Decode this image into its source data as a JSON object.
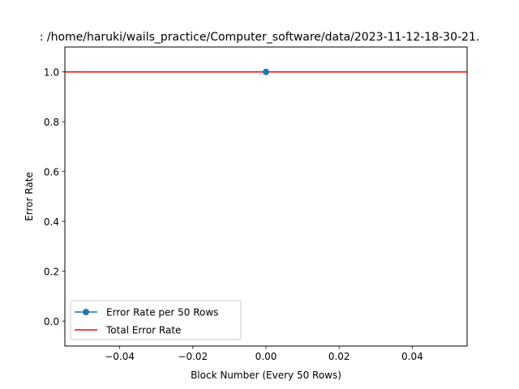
{
  "chart_data": {
    "type": "line",
    "title": ": /home/haruki/wails_practice/Computer_software/data/2023-11-12-18-30-21.",
    "xlabel": "Block Number (Every 50 Rows)",
    "ylabel": "Error Rate",
    "xlim": [
      -0.055,
      0.055
    ],
    "ylim": [
      -0.1,
      1.1
    ],
    "x_ticks": [
      -0.04,
      -0.02,
      0.0,
      0.02,
      0.04
    ],
    "x_tick_labels": [
      "−0.04",
      "−0.02",
      "0.00",
      "0.02",
      "0.04"
    ],
    "y_ticks": [
      0.0,
      0.2,
      0.4,
      0.6,
      0.8,
      1.0
    ],
    "y_tick_labels": [
      "0.0",
      "0.2",
      "0.4",
      "0.6",
      "0.8",
      "1.0"
    ],
    "grid": false,
    "legend_position": "lower-left",
    "series": [
      {
        "name": "Error Rate per 50 Rows",
        "kind": "line-with-markers",
        "color": "#1f77b4",
        "x": [
          0
        ],
        "y": [
          1.0
        ]
      }
    ],
    "reference_lines": [
      {
        "name": "Total Error Rate",
        "kind": "horizontal-line",
        "color": "#ff0000",
        "y": 1.0
      }
    ]
  }
}
